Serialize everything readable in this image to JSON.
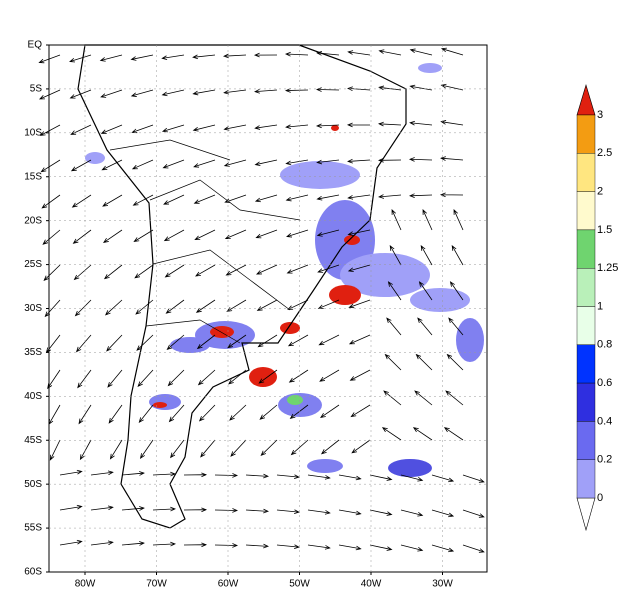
{
  "map": {
    "lat_labels": [
      "EQ",
      "5S",
      "10S",
      "15S",
      "20S",
      "25S",
      "30S",
      "35S",
      "40S",
      "45S",
      "50S",
      "55S",
      "60S"
    ],
    "lon_labels": [
      "80W",
      "70W",
      "60W",
      "50W",
      "40W",
      "30W"
    ],
    "colorbar_labels": [
      "3",
      "2.5",
      "2",
      "1.5",
      "1.25",
      "1",
      "0.8",
      "0.6",
      "0.4",
      "0.2",
      "0"
    ]
  }
}
